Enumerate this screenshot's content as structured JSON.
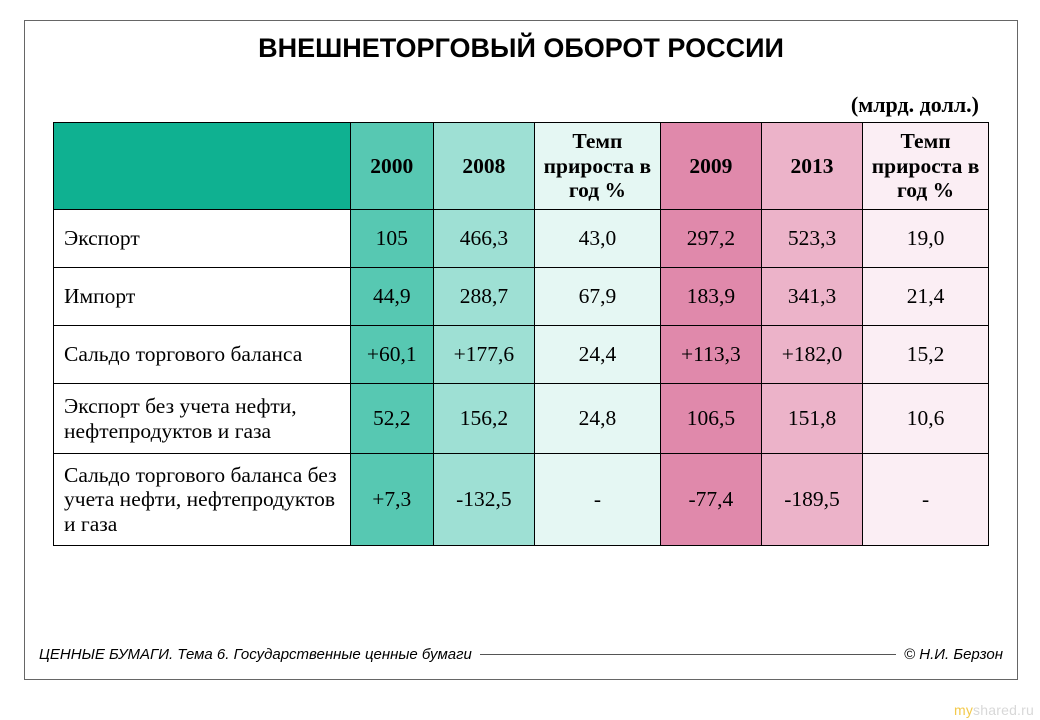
{
  "title": "ВНЕШНЕТОРГОВЫЙ ОБОРОТ РОССИИ",
  "units": "(млрд. долл.)",
  "table": {
    "header_bg": {
      "corner": "#0fb191",
      "c1": "#57c8b2",
      "c2": "#9ee0d4",
      "c3": "#e5f7f3",
      "c4": "#e089ab",
      "c5": "#ecb3c9",
      "c6": "#fbeef4"
    },
    "body_bg": {
      "rowlabel": "#ffffff",
      "c1": "#57c8b2",
      "c2": "#9ee0d4",
      "c3": "#e5f7f3",
      "c4": "#e089ab",
      "c5": "#ecb3c9",
      "c6": "#fbeef4"
    },
    "headers": {
      "c1": "2000",
      "c2": "2008",
      "c3": "Темп прироста в год %",
      "c4": "2009",
      "c5": "2013",
      "c6": "Темп прироста в год %"
    },
    "rows": [
      {
        "label": "Экспорт",
        "c1": "105",
        "c2": "466,3",
        "c3": "43,0",
        "c4": "297,2",
        "c5": "523,3",
        "c6": "19,0",
        "cls": ""
      },
      {
        "label": "Импорт",
        "c1": "44,9",
        "c2": "288,7",
        "c3": "67,9",
        "c4": "183,9",
        "c5": "341,3",
        "c6": "21,4",
        "cls": ""
      },
      {
        "label": "Сальдо торгового баланса",
        "c1": "+60,1",
        "c2": "+177,6",
        "c3": "24,4",
        "c4": "+113,3",
        "c5": "+182,0",
        "c6": "15,2",
        "cls": ""
      },
      {
        "label": "Экспорт без учета нефти, нефтепродуктов и газа",
        "c1": "52,2",
        "c2": "156,2",
        "c3": "24,8",
        "c4": "106,5",
        "c5": "151,8",
        "c6": "10,6",
        "cls": "tall"
      },
      {
        "label": "Сальдо торгового баланса без учета нефти, нефтепродуктов и газа",
        "c1": "+7,3",
        "c2": "-132,5",
        "c3": "-",
        "c4": "-77,4",
        "c5": "-189,5",
        "c6": "-",
        "cls": "vtall"
      }
    ]
  },
  "footer": {
    "left": "ЦЕННЫЕ БУМАГИ. Тема 6. Государственные ценные бумаги",
    "right": "© Н.И. Берзон"
  },
  "watermark": {
    "left": "my",
    "right": "shared.ru"
  }
}
